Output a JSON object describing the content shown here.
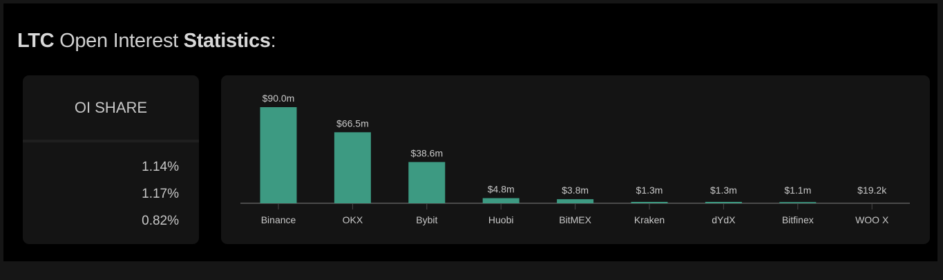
{
  "title": {
    "part1": "LTC",
    "part2": " Open Interest ",
    "part3": "Statistics",
    "part4": ":"
  },
  "oi_share": {
    "label": "OI SHARE",
    "values": [
      "1.14%",
      "1.17%",
      "0.82%"
    ]
  },
  "colors": {
    "bar": "#3d9a82",
    "background": "#000000",
    "card": "#141414"
  },
  "chart_data": {
    "type": "bar",
    "categories": [
      "Binance",
      "OKX",
      "Bybit",
      "Huobi",
      "BitMEX",
      "Kraken",
      "dYdX",
      "Bitfinex",
      "WOO X"
    ],
    "values": [
      90.0,
      66.5,
      38.6,
      4.8,
      3.8,
      1.3,
      1.3,
      1.1,
      0.0192
    ],
    "value_labels": [
      "$90.0m",
      "$66.5m",
      "$38.6m",
      "$4.8m",
      "$3.8m",
      "$1.3m",
      "$1.3m",
      "$1.1m",
      "$19.2k"
    ],
    "unit": "USD millions",
    "ylim": [
      0,
      90
    ],
    "grid": false
  }
}
